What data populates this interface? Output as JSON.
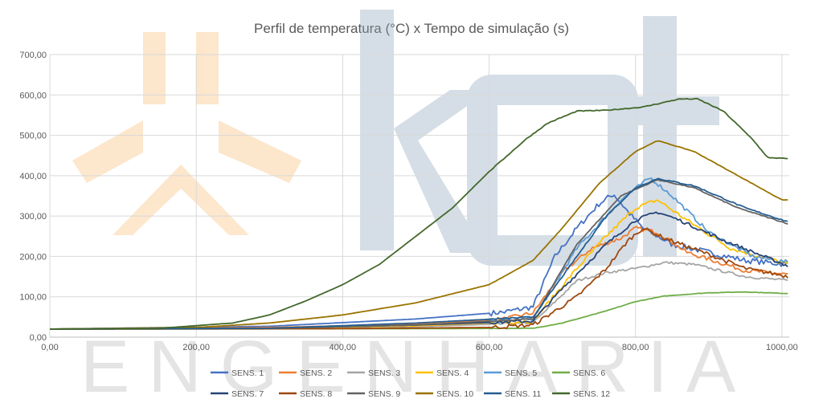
{
  "chart_data": {
    "type": "line",
    "title": "Perfil de temperatura (°C) x Tempo de simulação (s)",
    "xlabel": "",
    "ylabel": "",
    "xlim": [
      0,
      1010
    ],
    "ylim": [
      0,
      700
    ],
    "x_ticks": [
      "0,00",
      "200,00",
      "400,00",
      "600,00",
      "800,00",
      "1000,00"
    ],
    "y_ticks": [
      "0,00",
      "100,00",
      "200,00",
      "300,00",
      "400,00",
      "500,00",
      "600,00",
      "700,00"
    ],
    "grid": "vertical and horizontal",
    "legend_position": "bottom",
    "series": [
      {
        "name": "SENS. 1",
        "color": "#4472C4",
        "noise": 14,
        "points": [
          [
            0,
            20
          ],
          [
            300,
            27
          ],
          [
            500,
            45
          ],
          [
            620,
            62
          ],
          [
            660,
            75
          ],
          [
            690,
            200
          ],
          [
            720,
            270
          ],
          [
            750,
            330
          ],
          [
            770,
            355
          ],
          [
            790,
            310
          ],
          [
            810,
            270
          ],
          [
            850,
            230
          ],
          [
            950,
            190
          ],
          [
            1010,
            180
          ]
        ]
      },
      {
        "name": "SENS. 2",
        "color": "#ED7D31",
        "noise": 10,
        "points": [
          [
            0,
            20
          ],
          [
            300,
            24
          ],
          [
            500,
            32
          ],
          [
            620,
            45
          ],
          [
            660,
            60
          ],
          [
            700,
            160
          ],
          [
            740,
            220
          ],
          [
            780,
            245
          ],
          [
            800,
            270
          ],
          [
            830,
            260
          ],
          [
            870,
            210
          ],
          [
            950,
            165
          ],
          [
            1010,
            155
          ]
        ]
      },
      {
        "name": "SENS. 3",
        "color": "#A5A5A5",
        "noise": 6,
        "points": [
          [
            0,
            20
          ],
          [
            300,
            22
          ],
          [
            500,
            26
          ],
          [
            660,
            35
          ],
          [
            720,
            140
          ],
          [
            760,
            160
          ],
          [
            800,
            170
          ],
          [
            840,
            185
          ],
          [
            880,
            180
          ],
          [
            950,
            150
          ],
          [
            1010,
            140
          ]
        ]
      },
      {
        "name": "SENS. 4",
        "color": "#FFC000",
        "noise": 10,
        "points": [
          [
            0,
            20
          ],
          [
            300,
            22
          ],
          [
            500,
            28
          ],
          [
            660,
            40
          ],
          [
            720,
            170
          ],
          [
            760,
            250
          ],
          [
            800,
            320
          ],
          [
            830,
            340
          ],
          [
            870,
            290
          ],
          [
            930,
            220
          ],
          [
            1010,
            180
          ]
        ]
      },
      {
        "name": "SENS. 5",
        "color": "#5B9BD5",
        "noise": 10,
        "points": [
          [
            0,
            20
          ],
          [
            300,
            22
          ],
          [
            500,
            30
          ],
          [
            660,
            45
          ],
          [
            720,
            220
          ],
          [
            780,
            340
          ],
          [
            820,
            395
          ],
          [
            850,
            350
          ],
          [
            900,
            260
          ],
          [
            960,
            200
          ],
          [
            1010,
            185
          ]
        ]
      },
      {
        "name": "SENS. 6",
        "color": "#70AD47",
        "noise": 1,
        "points": [
          [
            0,
            20
          ],
          [
            500,
            21
          ],
          [
            660,
            22
          ],
          [
            700,
            35
          ],
          [
            760,
            65
          ],
          [
            800,
            88
          ],
          [
            840,
            102
          ],
          [
            900,
            110
          ],
          [
            950,
            112
          ],
          [
            1010,
            108
          ]
        ]
      },
      {
        "name": "SENS. 7",
        "color": "#264478",
        "noise": 8,
        "points": [
          [
            0,
            20
          ],
          [
            300,
            22
          ],
          [
            500,
            30
          ],
          [
            660,
            40
          ],
          [
            700,
            120
          ],
          [
            760,
            230
          ],
          [
            800,
            290
          ],
          [
            830,
            310
          ],
          [
            860,
            290
          ],
          [
            920,
            240
          ],
          [
            1010,
            175
          ]
        ]
      },
      {
        "name": "SENS. 8",
        "color": "#9E480E",
        "noise": 10,
        "points": [
          [
            0,
            20
          ],
          [
            400,
            21
          ],
          [
            600,
            24
          ],
          [
            660,
            30
          ],
          [
            720,
            100
          ],
          [
            760,
            170
          ],
          [
            790,
            240
          ],
          [
            810,
            270
          ],
          [
            840,
            245
          ],
          [
            900,
            205
          ],
          [
            950,
            170
          ],
          [
            1010,
            150
          ]
        ]
      },
      {
        "name": "SENS. 9",
        "color": "#636363",
        "noise": 2,
        "points": [
          [
            0,
            20
          ],
          [
            300,
            22
          ],
          [
            500,
            30
          ],
          [
            660,
            45
          ],
          [
            720,
            230
          ],
          [
            780,
            350
          ],
          [
            830,
            390
          ],
          [
            880,
            370
          ],
          [
            940,
            320
          ],
          [
            1010,
            280
          ]
        ]
      },
      {
        "name": "SENS. 10",
        "color": "#997300",
        "noise": 1,
        "points": [
          [
            0,
            20
          ],
          [
            200,
            24
          ],
          [
            300,
            35
          ],
          [
            400,
            55
          ],
          [
            500,
            85
          ],
          [
            600,
            130
          ],
          [
            660,
            190
          ],
          [
            700,
            270
          ],
          [
            750,
            380
          ],
          [
            800,
            460
          ],
          [
            830,
            487
          ],
          [
            880,
            460
          ],
          [
            940,
            400
          ],
          [
            1000,
            340
          ],
          [
            1010,
            340
          ]
        ]
      },
      {
        "name": "SENS. 11",
        "color": "#255E91",
        "noise": 3,
        "points": [
          [
            0,
            20
          ],
          [
            300,
            22
          ],
          [
            500,
            35
          ],
          [
            660,
            50
          ],
          [
            700,
            150
          ],
          [
            760,
            300
          ],
          [
            800,
            370
          ],
          [
            830,
            393
          ],
          [
            880,
            375
          ],
          [
            950,
            320
          ],
          [
            1010,
            285
          ]
        ]
      },
      {
        "name": "SENS. 12",
        "color": "#43682B",
        "noise": 2,
        "points": [
          [
            0,
            20
          ],
          [
            150,
            22
          ],
          [
            250,
            35
          ],
          [
            300,
            55
          ],
          [
            350,
            90
          ],
          [
            400,
            130
          ],
          [
            450,
            180
          ],
          [
            500,
            250
          ],
          [
            550,
            320
          ],
          [
            600,
            410
          ],
          [
            650,
            490
          ],
          [
            680,
            530
          ],
          [
            720,
            560
          ],
          [
            760,
            562
          ],
          [
            810,
            570
          ],
          [
            860,
            590
          ],
          [
            885,
            590
          ],
          [
            920,
            560
          ],
          [
            960,
            490
          ],
          [
            980,
            445
          ],
          [
            1010,
            442
          ]
        ]
      }
    ]
  }
}
